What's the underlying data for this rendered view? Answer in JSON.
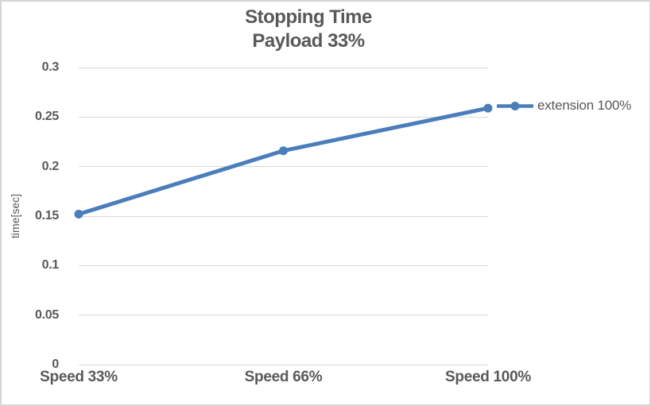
{
  "chart_data": {
    "type": "line",
    "title": "Stopping Time",
    "subtitle": "Payload 33%",
    "categories": [
      "Speed 33%",
      "Speed 66%",
      "Speed 100%"
    ],
    "series": [
      {
        "name": "extension 100%",
        "values": [
          0.152,
          0.216,
          0.259
        ]
      }
    ],
    "xlabel": "",
    "ylabel": "time[sec]",
    "ylim": [
      0,
      0.3
    ],
    "yticks": [
      {
        "label": "0",
        "value": 0
      },
      {
        "label": "0.05",
        "value": 0.05
      },
      {
        "label": "0.1",
        "value": 0.1
      },
      {
        "label": "0.15",
        "value": 0.15
      },
      {
        "label": "0.2",
        "value": 0.2
      },
      {
        "label": "0.25",
        "value": 0.25
      },
      {
        "label": "0.3",
        "value": 0.3
      }
    ],
    "grid": true,
    "legend_position": "right-of-last-point",
    "colors": {
      "series": "#4A7EBB",
      "gridline": "#D9D9D9",
      "text": "#595959",
      "background": "#FFFFFF",
      "border": "#D6D6D6"
    }
  }
}
